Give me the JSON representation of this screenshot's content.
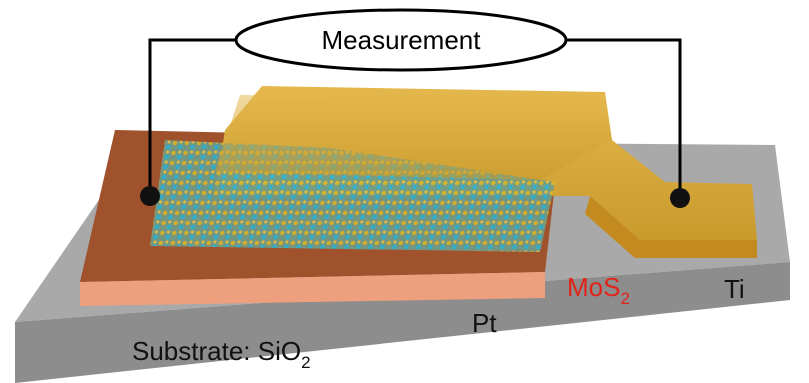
{
  "diagram": {
    "measurement": "Measurement",
    "labels": {
      "pt": "Pt",
      "mos2": {
        "base": "MoS",
        "sub": "2"
      },
      "ti": "Ti",
      "substrate": {
        "base": "Substrate: SiO",
        "sub": "2"
      }
    }
  }
}
